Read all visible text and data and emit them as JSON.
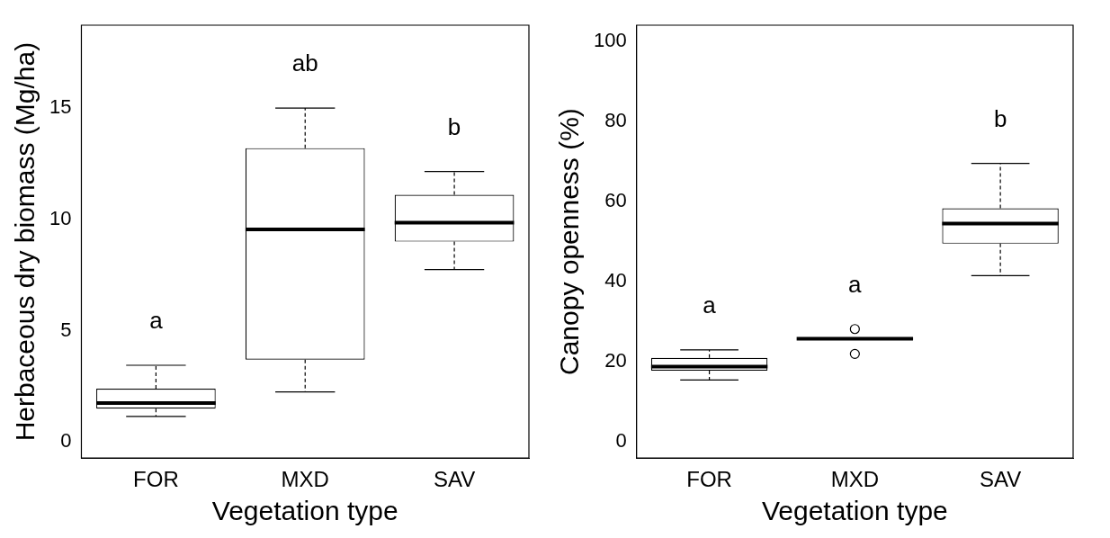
{
  "chart_data": [
    {
      "type": "box",
      "xlabel": "Vegetation type",
      "ylabel": "Herbaceous dry biomass (Mg/ha)",
      "categories": [
        "FOR",
        "MXD",
        "SAV"
      ],
      "color": "#000000",
      "boxes": [
        {
          "low": 1.15,
          "q1": 1.5,
          "median": 1.75,
          "q3": 2.4,
          "high": 3.45
        },
        {
          "low": 2.25,
          "q1": 3.7,
          "median": 9.55,
          "q3": 13.2,
          "high": 15.0
        },
        {
          "low": 7.75,
          "q1": 9.0,
          "median": 9.85,
          "q3": 11.1,
          "high": 12.15
        }
      ],
      "ylim": [
        -0.72,
        18.72
      ],
      "yticks": [
        0,
        5,
        10,
        15
      ],
      "grid": false,
      "annotations": [
        "a",
        "ab",
        "b"
      ]
    },
    {
      "type": "box",
      "xlabel": "Vegetation type",
      "ylabel": "Canopy openness (%)",
      "categories": [
        "FOR",
        "MXD",
        "SAV"
      ],
      "color": "#000000",
      "boxes": [
        {
          "low": 15.5,
          "q1": 17.8,
          "median": 18.8,
          "q3": 21,
          "high": 23
        },
        {
          "low": 25.8,
          "q1": 25.8,
          "median": 25.8,
          "q3": 25.8,
          "high": 25.8,
          "outliers": [
            28.2,
            22
          ]
        },
        {
          "low": 41.5,
          "q1": 49.5,
          "median": 54.5,
          "q3": 58.3,
          "high": 69.5
        }
      ],
      "ylim": [
        -4,
        104
      ],
      "yticks": [
        0,
        20,
        40,
        60,
        80,
        100
      ],
      "grid": false,
      "annotations": [
        "a",
        "a",
        "b"
      ]
    }
  ]
}
